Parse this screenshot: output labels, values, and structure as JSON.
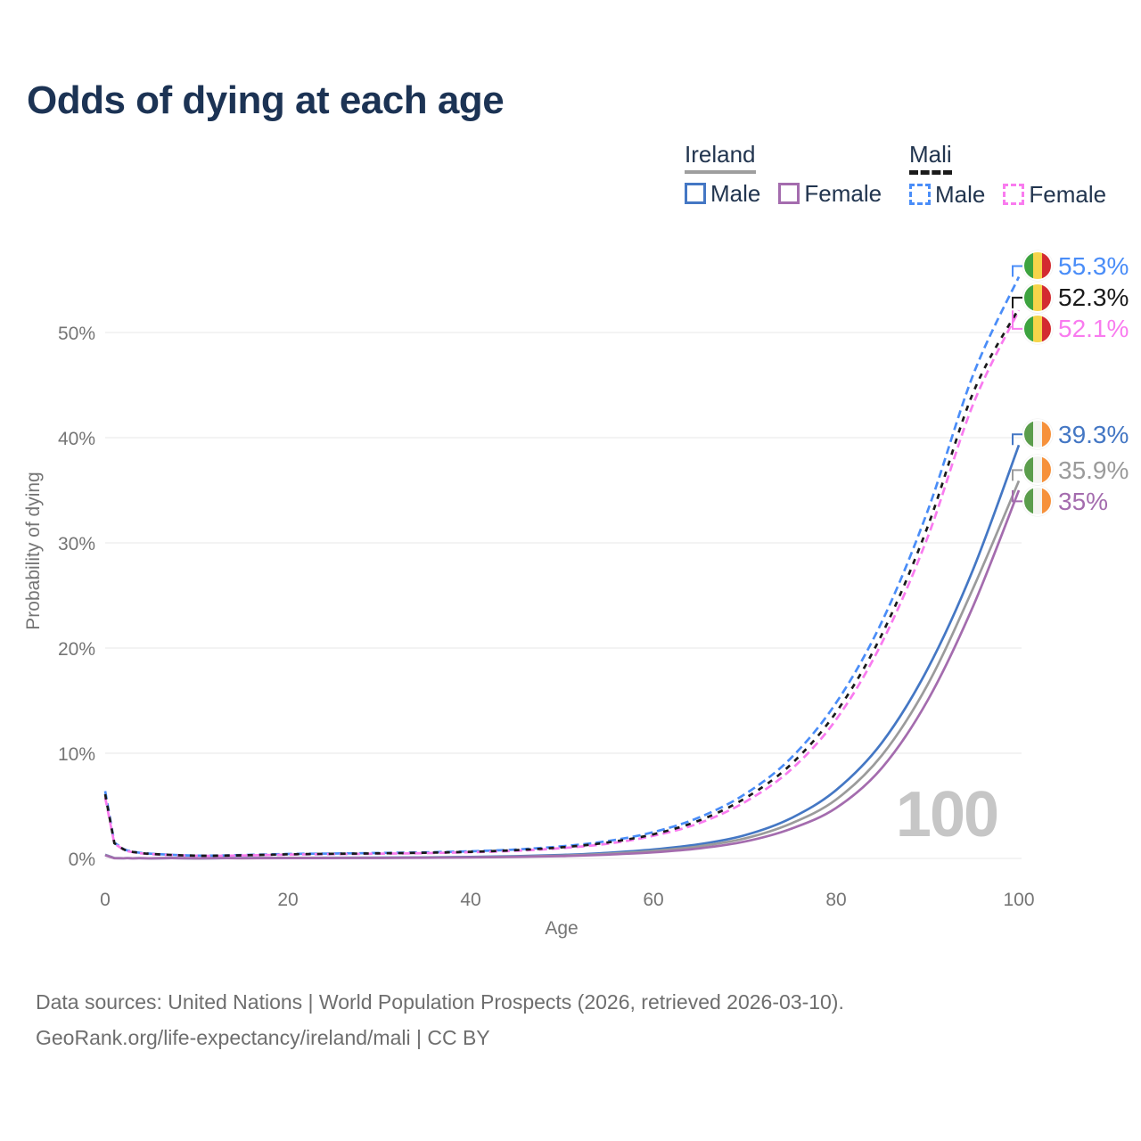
{
  "title": "Odds of dying at each age",
  "legend": {
    "ireland": {
      "label": "Ireland",
      "male": "Male",
      "female": "Female"
    },
    "mali": {
      "label": "Mali",
      "male": "Male",
      "female": "Female"
    }
  },
  "chart_data": {
    "type": "line",
    "title": "Odds of dying at each age",
    "xlabel": "Age",
    "ylabel": "Probability of dying",
    "xlim": [
      0,
      100
    ],
    "ylim": [
      0,
      57
    ],
    "x_ticks": [
      0,
      20,
      40,
      60,
      80,
      100
    ],
    "y_ticks": [
      0,
      10,
      20,
      30,
      40,
      50
    ],
    "y_tick_suffix": "%",
    "grid": "horizontal",
    "legend_position": "top-right",
    "watermark": "100",
    "x": [
      0,
      1,
      2,
      3,
      5,
      10,
      15,
      20,
      25,
      30,
      35,
      40,
      45,
      50,
      55,
      60,
      65,
      70,
      75,
      80,
      85,
      90,
      95,
      100
    ],
    "series": [
      {
        "name": "Ireland Male",
        "country": "Ireland",
        "sex": "Male",
        "color": "#4477c4",
        "dash": false,
        "flag": "ireland",
        "end_label": "39.3%",
        "values": [
          0.35,
          0.03,
          0.02,
          0.02,
          0.01,
          0.01,
          0.03,
          0.06,
          0.07,
          0.08,
          0.1,
          0.14,
          0.21,
          0.33,
          0.53,
          0.85,
          1.35,
          2.2,
          3.8,
          6.5,
          11.0,
          18.0,
          27.5,
          39.3
        ]
      },
      {
        "name": "Ireland All",
        "country": "Ireland",
        "sex": "All",
        "color": "#9b9b9b",
        "dash": false,
        "flag": "ireland",
        "end_label": "35.9%",
        "values": [
          0.33,
          0.03,
          0.02,
          0.02,
          0.01,
          0.01,
          0.02,
          0.05,
          0.05,
          0.06,
          0.08,
          0.11,
          0.17,
          0.27,
          0.44,
          0.71,
          1.15,
          1.9,
          3.3,
          5.6,
          9.8,
          16.5,
          25.7,
          35.9
        ]
      },
      {
        "name": "Ireland Female",
        "country": "Ireland",
        "sex": "Female",
        "color": "#a46cae",
        "dash": false,
        "flag": "ireland",
        "end_label": "35%",
        "values": [
          0.3,
          0.02,
          0.02,
          0.01,
          0.01,
          0.01,
          0.02,
          0.03,
          0.03,
          0.04,
          0.06,
          0.09,
          0.14,
          0.22,
          0.36,
          0.58,
          0.95,
          1.6,
          2.8,
          4.8,
          8.6,
          15.0,
          24.0,
          35.0
        ]
      },
      {
        "name": "Mali Male",
        "country": "Mali",
        "sex": "Male",
        "color": "#4a8df8",
        "dash": true,
        "flag": "mali",
        "end_label": "55.3%",
        "values": [
          6.4,
          1.5,
          0.9,
          0.65,
          0.45,
          0.27,
          0.32,
          0.42,
          0.47,
          0.52,
          0.58,
          0.68,
          0.85,
          1.15,
          1.65,
          2.5,
          3.9,
          6.1,
          9.5,
          14.8,
          22.5,
          33.0,
          46.0,
          55.3
        ]
      },
      {
        "name": "Mali Female",
        "country": "Mali",
        "sex": "Female",
        "color": "#f97bef",
        "dash": true,
        "flag": "mali",
        "end_label": "52.1%",
        "values": [
          5.8,
          1.4,
          0.84,
          0.6,
          0.41,
          0.25,
          0.28,
          0.36,
          0.41,
          0.45,
          0.5,
          0.59,
          0.73,
          0.98,
          1.4,
          2.15,
          3.35,
          5.35,
          8.4,
          13.2,
          20.5,
          30.5,
          43.2,
          52.1
        ]
      },
      {
        "name": "Mali All",
        "country": "Mali",
        "sex": "All",
        "color": "#1a1a1a",
        "dash": true,
        "flag": "mali",
        "end_label": "52.3%",
        "values": [
          6.1,
          1.45,
          0.87,
          0.62,
          0.43,
          0.26,
          0.3,
          0.39,
          0.44,
          0.48,
          0.54,
          0.63,
          0.79,
          1.06,
          1.52,
          2.3,
          3.6,
          5.7,
          8.9,
          13.9,
          21.3,
          31.5,
          44.3,
          52.3
        ]
      }
    ]
  },
  "flags": {
    "ireland": {
      "name": "ireland-flag-icon",
      "colors": [
        "#5b9d4c",
        "#f4f4f1",
        "#f6913b"
      ]
    },
    "mali": {
      "name": "mali-flag-icon",
      "colors": [
        "#3da33f",
        "#f6d44a",
        "#d32b30"
      ]
    }
  },
  "colors": {
    "title": "#1c3354",
    "legend_text": "#22354f",
    "ireland_underline": "#9e9e9e",
    "mali_underline": "#1a1a1a",
    "axis_text": "#757575",
    "grid": "#e7e7e7",
    "watermark": "#c6c6c6",
    "footer_text": "#6e6e6e"
  },
  "footer": {
    "line1": "Data sources: United Nations | World Population Prospects (2026, retrieved 2026-03-10).",
    "line2": "GeoRank.org/life-expectancy/ireland/mali | CC BY"
  }
}
